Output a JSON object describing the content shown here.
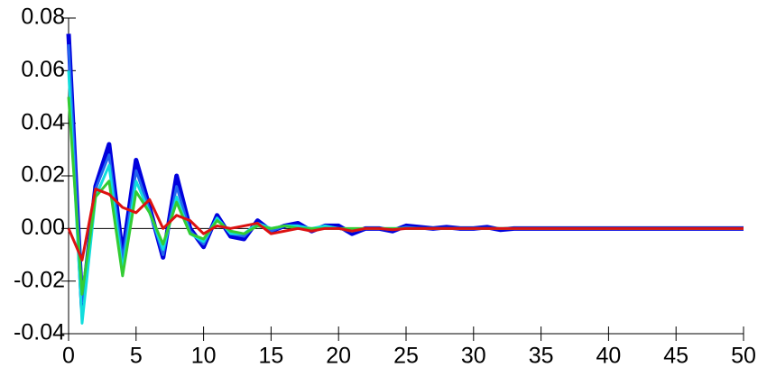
{
  "chart_data": {
    "type": "line",
    "x": [
      0,
      1,
      2,
      3,
      4,
      5,
      6,
      7,
      8,
      9,
      10,
      11,
      12,
      13,
      14,
      15,
      16,
      17,
      18,
      19,
      20,
      21,
      22,
      23,
      24,
      25,
      26,
      27,
      28,
      29,
      30,
      31,
      32,
      33,
      34,
      35,
      36,
      37,
      38,
      39,
      40,
      41,
      42,
      43,
      44,
      45,
      46,
      47,
      48,
      49,
      50
    ],
    "series": [
      {
        "color": "#0000dd",
        "values": [
          0.074,
          -0.03,
          0.016,
          0.032,
          -0.01,
          0.026,
          0.008,
          -0.011,
          0.02,
          0,
          -0.007,
          0.005,
          -0.003,
          -0.004,
          0.003,
          -0.001,
          0.001,
          0.002,
          -0.001,
          0.001,
          0.001,
          -0.002,
          0,
          0,
          -0.001,
          0.001,
          0.0005,
          0,
          0.0005,
          0,
          0,
          0.0005,
          -0.0005,
          0,
          0,
          0,
          0,
          0,
          0,
          0,
          0,
          0,
          0,
          0,
          0,
          0,
          0,
          0,
          0,
          0,
          0
        ]
      },
      {
        "color": "#2266ee",
        "values": [
          0.07,
          -0.028,
          0.015,
          0.028,
          -0.012,
          0.022,
          0.007,
          -0.01,
          0.016,
          -0.001,
          -0.006,
          0.004,
          -0.002,
          -0.003,
          0.002,
          -0.001,
          0.001,
          0.001,
          -0.001,
          0.001,
          0,
          -0.001,
          0,
          0,
          -0.0005,
          0.0005,
          0,
          0,
          0,
          0,
          0,
          0,
          0,
          0,
          0,
          0,
          0,
          0,
          0,
          0,
          0,
          0,
          0,
          0,
          0,
          0,
          0,
          0,
          0,
          0,
          0
        ]
      },
      {
        "color": "#11dddd",
        "values": [
          0.06,
          -0.036,
          0.012,
          0.024,
          -0.016,
          0.018,
          0.006,
          -0.008,
          0.012,
          -0.002,
          -0.005,
          0.004,
          -0.002,
          -0.002,
          0.002,
          0,
          0.001,
          0.001,
          0,
          0.001,
          0,
          -0.001,
          0,
          0,
          0,
          0,
          0,
          0,
          0,
          0,
          0,
          0,
          0,
          0,
          0,
          0,
          0,
          0,
          0,
          0,
          0,
          0,
          0,
          0,
          0,
          0,
          0,
          0,
          0,
          0,
          0
        ]
      },
      {
        "color": "#33cc33",
        "values": [
          0.05,
          -0.025,
          0.012,
          0.018,
          -0.018,
          0.014,
          0.006,
          -0.006,
          0.01,
          -0.002,
          -0.004,
          0.003,
          -0.001,
          -0.002,
          0.001,
          0,
          0.001,
          0,
          0,
          0,
          0,
          0,
          0,
          0,
          0,
          0,
          0,
          0,
          0,
          0,
          0,
          0,
          0,
          0,
          0,
          0,
          0,
          0,
          0,
          0,
          0,
          0,
          0,
          0,
          0,
          0,
          0,
          0,
          0,
          0,
          0
        ]
      },
      {
        "color": "#dd1111",
        "values": [
          0,
          -0.012,
          0.015,
          0.013,
          0.008,
          0.006,
          0.011,
          0,
          0.005,
          0.003,
          -0.002,
          0.001,
          0,
          0.001,
          0.002,
          -0.002,
          -0.001,
          0,
          -0.001,
          0,
          0,
          -0.001,
          0,
          0,
          -0.0005,
          0,
          0,
          0,
          0,
          0,
          0,
          0,
          0,
          0,
          0,
          0,
          0,
          0,
          0,
          0,
          0,
          0,
          0,
          0,
          0,
          0,
          0,
          0,
          0,
          0,
          0
        ]
      }
    ],
    "xlim": [
      0,
      50
    ],
    "xticks": [
      0,
      5,
      10,
      15,
      20,
      25,
      30,
      35,
      40,
      45,
      50
    ],
    "ylim": [
      -0.04,
      0.08
    ],
    "yticks": [
      -0.04,
      -0.02,
      {
        "value": 0,
        "label": "0.00"
      },
      0.02,
      0.04,
      0.06,
      0.08
    ]
  }
}
